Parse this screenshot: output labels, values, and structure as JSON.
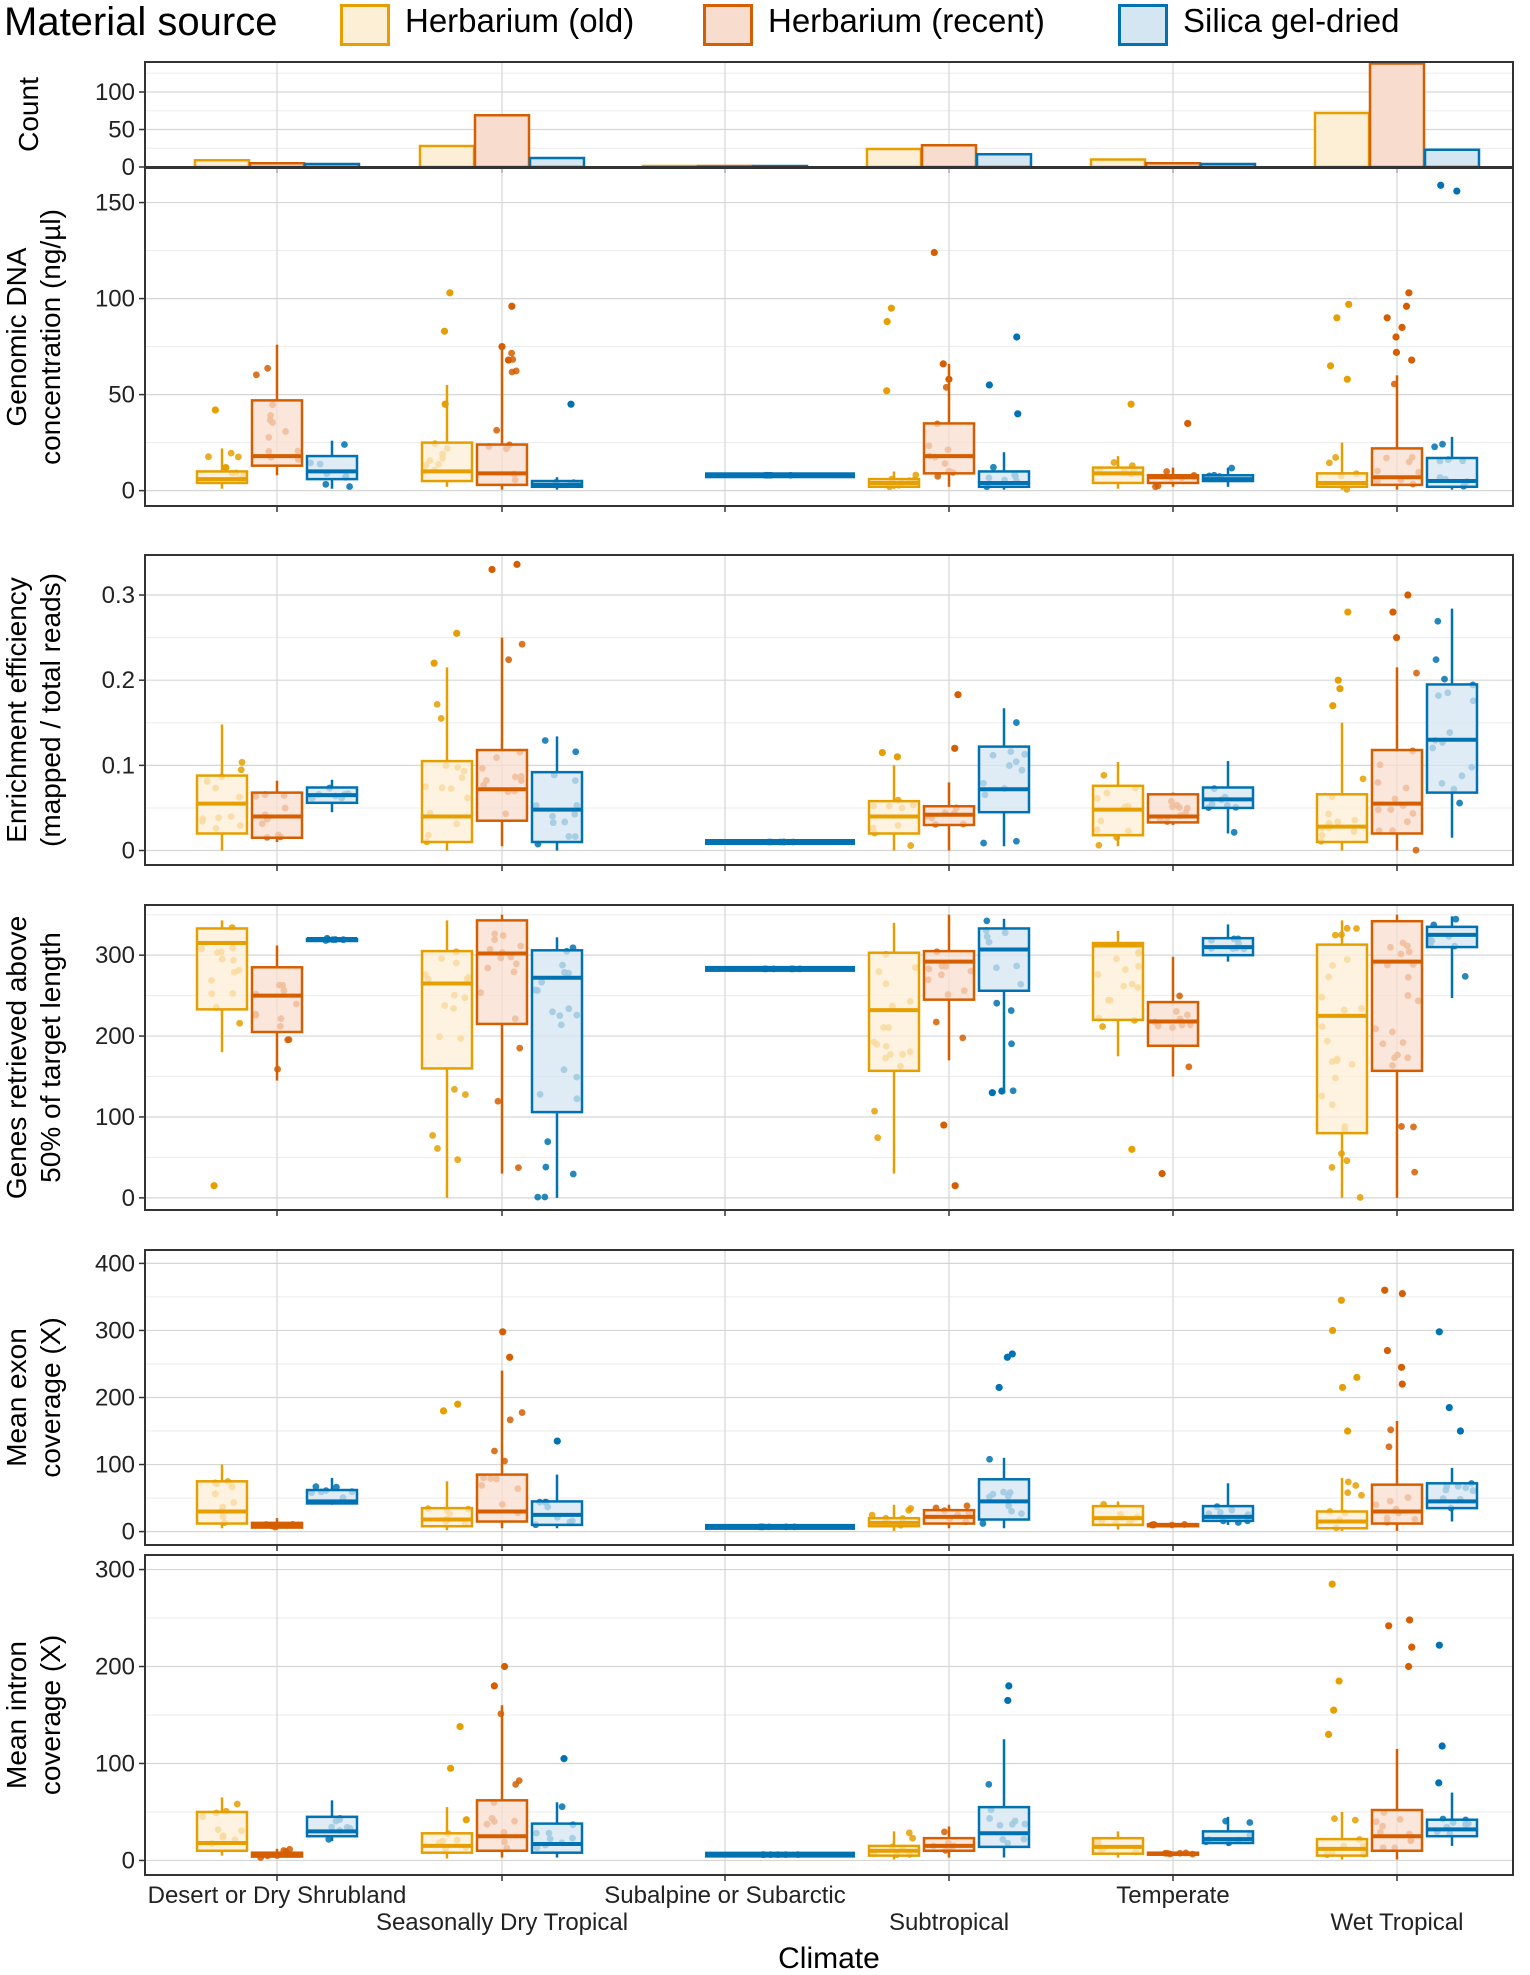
{
  "legend": {
    "title": "Material source",
    "items": [
      {
        "label": "Herbarium (old)",
        "stroke": "#E69F00",
        "fill": "#FDEFD6"
      },
      {
        "label": "Herbarium (recent)",
        "stroke": "#D55E00",
        "fill": "#F8DDCF"
      },
      {
        "label": "Silica gel-dried",
        "stroke": "#0072B2",
        "fill": "#D4E6F1"
      }
    ]
  },
  "chart_data": {
    "type": "box",
    "xlabel": "Climate",
    "categories": [
      "Desert or Dry Shrubland",
      "Seasonally Dry Tropical",
      "Subalpine or Subarctic",
      "Subtropical",
      "Temperate",
      "Wet Tropical"
    ],
    "series_names": [
      "Herbarium (old)",
      "Herbarium (recent)",
      "Silica gel-dried"
    ],
    "panels": [
      {
        "id": "count",
        "type": "bar",
        "ylabel": [
          "Count"
        ],
        "ylim": [
          0,
          140
        ],
        "yticks": [
          0,
          50,
          100
        ],
        "values": [
          [
            9,
            28,
            0,
            24,
            10,
            72
          ],
          [
            5,
            69,
            0,
            29,
            5,
            138
          ],
          [
            4,
            12,
            1,
            17,
            4,
            23
          ]
        ]
      },
      {
        "id": "gdna",
        "type": "box",
        "ylabel": [
          "Genomic DNA",
          "concentration (ng/µl)"
        ],
        "ylim": [
          -8,
          168
        ],
        "yticks": [
          0,
          50,
          100,
          150
        ],
        "boxes": [
          [
            [
              1,
              4,
              6,
              10,
              22
            ],
            [
              2,
              5,
              10,
              25,
              55
            ],
            null,
            [
              1,
              2,
              4,
              6,
              10
            ],
            [
              1,
              4,
              9,
              12,
              18
            ],
            [
              0.5,
              2,
              4,
              9,
              25
            ]
          ],
          [
            [
              8,
              13,
              18,
              47,
              76
            ],
            [
              0.5,
              3,
              9,
              24,
              75
            ],
            null,
            [
              2,
              9,
              18,
              35,
              66
            ],
            [
              2,
              4,
              7,
              8,
              12
            ],
            [
              0.5,
              3,
              7,
              22,
              60
            ]
          ],
          [
            [
              1,
              6,
              10,
              18,
              26
            ],
            [
              0.5,
              2,
              3,
              5,
              7
            ],
            [
              8,
              8,
              8,
              8,
              8
            ],
            [
              0.5,
              2,
              4,
              10,
              20
            ],
            [
              2,
              5,
              6,
              8,
              12
            ],
            [
              0.5,
              2,
              5,
              17,
              28
            ]
          ]
        ],
        "outliers": [
          [
            [
              42,
              12
            ],
            [
              103,
              83,
              45
            ],
            [],
            [
              95,
              88,
              52
            ],
            [
              45
            ],
            [
              97,
              90,
              65,
              58
            ]
          ],
          [
            [],
            [
              96,
              75,
              68
            ],
            [],
            [
              124,
              66,
              58
            ],
            [
              35
            ],
            [
              103,
              96,
              90,
              85,
              80,
              72,
              68
            ]
          ],
          [
            [],
            [
              45
            ],
            [],
            [
              80,
              55,
              40
            ],
            [],
            [
              159,
              156
            ]
          ]
        ]
      },
      {
        "id": "enrich",
        "type": "box",
        "ylabel": [
          "Enrichment efficiency",
          "(mapped / total reads)"
        ],
        "ylim": [
          -0.017,
          0.347
        ],
        "yticks": [
          0,
          0.1,
          0.2,
          0.3
        ],
        "boxes": [
          [
            [
              0,
              0.02,
              0.055,
              0.088,
              0.148
            ],
            [
              0,
              0.01,
              0.04,
              0.105,
              0.215
            ],
            null,
            [
              0,
              0.02,
              0.04,
              0.058,
              0.1
            ],
            [
              0.005,
              0.018,
              0.048,
              0.076,
              0.104
            ],
            [
              0,
              0.01,
              0.028,
              0.066,
              0.15
            ]
          ],
          [
            [
              0.01,
              0.015,
              0.04,
              0.068,
              0.082
            ],
            [
              0.005,
              0.035,
              0.072,
              0.118,
              0.25
            ],
            null,
            [
              0,
              0.03,
              0.042,
              0.052,
              0.08
            ],
            [
              0.03,
              0.033,
              0.04,
              0.066,
              0.068
            ],
            [
              0,
              0.02,
              0.055,
              0.118,
              0.215
            ]
          ],
          [
            [
              0.045,
              0.056,
              0.065,
              0.074,
              0.083
            ],
            [
              0,
              0.01,
              0.048,
              0.092,
              0.134
            ],
            [
              0.01,
              0.01,
              0.01,
              0.01,
              0.01
            ],
            [
              0.005,
              0.045,
              0.072,
              0.122,
              0.167
            ],
            [
              0.02,
              0.05,
              0.06,
              0.074,
              0.105
            ],
            [
              0.015,
              0.068,
              0.13,
              0.195,
              0.284
            ]
          ]
        ],
        "outliers": [
          [
            [],
            [
              0.255,
              0.22
            ],
            [],
            [
              0.115,
              0.11
            ],
            [],
            [
              0.28,
              0.2,
              0.19,
              0.17
            ]
          ],
          [
            [],
            [
              0.336,
              0.33
            ],
            [],
            [
              0.183,
              0.12
            ],
            [],
            [
              0.3,
              0.28,
              0.25
            ]
          ],
          [
            [],
            [],
            [],
            [],
            [],
            []
          ]
        ]
      },
      {
        "id": "genes",
        "type": "box",
        "ylabel": [
          "Genes retrieved above",
          "50% of target length"
        ],
        "ylim": [
          -15,
          362
        ],
        "yticks": [
          0,
          100,
          200,
          300
        ],
        "boxes": [
          [
            [
              180,
              233,
              315,
              333,
              343
            ],
            [
              0,
              160,
              265,
              305,
              343
            ],
            null,
            [
              30,
              157,
              232,
              303,
              340
            ],
            [
              175,
              220,
              312,
              315,
              330
            ],
            [
              0,
              80,
              225,
              313,
              343
            ]
          ],
          [
            [
              145,
              205,
              250,
              285,
              312
            ],
            [
              30,
              215,
              302,
              343,
              350
            ],
            null,
            [
              170,
              245,
              292,
              305,
              350
            ],
            [
              150,
              188,
              218,
              242,
              298
            ],
            [
              0,
              157,
              292,
              342,
              350
            ]
          ],
          [
            [
              318,
              318,
              320,
              320,
              321
            ],
            [
              0,
              106,
              272,
              306,
              322
            ],
            [
              283,
              283,
              283,
              283,
              283
            ],
            [
              130,
              256,
              307,
              333,
              345
            ],
            [
              292,
              300,
              310,
              321,
              338
            ],
            [
              247,
              310,
              325,
              335,
              348
            ]
          ]
        ],
        "outliers": [
          [
            [
              15
            ],
            [],
            [],
            [],
            [
              60
            ],
            []
          ],
          [
            [],
            [],
            [],
            [
              15,
              90
            ],
            [
              30
            ],
            []
          ],
          [
            [],
            [],
            [],
            [
              130,
              132
            ],
            [],
            []
          ]
        ]
      },
      {
        "id": "exon",
        "type": "box",
        "ylabel": [
          "Mean exon",
          "coverage (X)"
        ],
        "ylim": [
          -20,
          420
        ],
        "yticks": [
          0,
          100,
          200,
          300,
          400
        ],
        "boxes": [
          [
            [
              5,
              12,
              30,
              75,
              100
            ],
            [
              2,
              8,
              18,
              35,
              75
            ],
            null,
            [
              1,
              8,
              13,
              20,
              40
            ],
            [
              3,
              10,
              20,
              38,
              45
            ],
            [
              1,
              5,
              15,
              30,
              80
            ]
          ],
          [
            [
              3,
              6,
              10,
              13,
              20
            ],
            [
              5,
              15,
              30,
              85,
              240
            ],
            null,
            [
              5,
              12,
              22,
              32,
              40
            ],
            [
              8,
              9,
              10,
              11,
              12
            ],
            [
              1,
              12,
              30,
              70,
              165
            ]
          ],
          [
            [
              40,
              42,
              45,
              62,
              80
            ],
            [
              5,
              10,
              25,
              45,
              85
            ],
            [
              7,
              7,
              7,
              7,
              7
            ],
            [
              5,
              18,
              45,
              78,
              110
            ],
            [
              10,
              16,
              22,
              38,
              72
            ],
            [
              15,
              35,
              45,
              72,
              95
            ]
          ]
        ],
        "outliers": [
          [
            [],
            [
              190,
              180
            ],
            [],
            [],
            [],
            [
              345,
              300,
              230,
              215,
              150
            ]
          ],
          [
            [],
            [
              298,
              260
            ],
            [],
            [],
            [],
            [
              360,
              355,
              270,
              245,
              220
            ]
          ],
          [
            [],
            [
              135
            ],
            [],
            [
              265,
              260,
              215
            ],
            [],
            [
              298,
              185,
              150
            ]
          ]
        ]
      },
      {
        "id": "intron",
        "type": "box",
        "ylabel": [
          "Mean intron",
          "coverage (X)"
        ],
        "ylim": [
          -15,
          315
        ],
        "yticks": [
          0,
          100,
          200,
          300
        ],
        "boxes": [
          [
            [
              5,
              10,
              18,
              50,
              65
            ],
            [
              2,
              8,
              15,
              28,
              55
            ],
            null,
            [
              1,
              5,
              10,
              15,
              30
            ],
            [
              3,
              7,
              14,
              23,
              30
            ],
            [
              1,
              5,
              12,
              22,
              50
            ]
          ],
          [
            [
              2,
              4,
              6,
              8,
              12
            ],
            [
              3,
              10,
              25,
              62,
              160
            ],
            null,
            [
              3,
              10,
              15,
              23,
              35
            ],
            [
              5,
              6,
              7,
              8,
              9
            ],
            [
              1,
              10,
              25,
              52,
              115
            ]
          ],
          [
            [
              20,
              25,
              30,
              45,
              62
            ],
            [
              3,
              8,
              17,
              38,
              60
            ],
            [
              6,
              6,
              6,
              6,
              6
            ],
            [
              3,
              14,
              28,
              55,
              125
            ],
            [
              15,
              18,
              22,
              30,
              45
            ],
            [
              15,
              25,
              32,
              42,
              70
            ]
          ]
        ],
        "outliers": [
          [
            [],
            [
              138,
              95
            ],
            [],
            [],
            [],
            [
              285,
              185,
              155,
              130
            ]
          ],
          [
            [],
            [
              200,
              180
            ],
            [],
            [],
            [],
            [
              248,
              242,
              220,
              200
            ]
          ],
          [
            [],
            [
              105
            ],
            [],
            [
              180,
              165
            ],
            [],
            [
              222,
              118,
              80
            ]
          ]
        ]
      }
    ]
  }
}
